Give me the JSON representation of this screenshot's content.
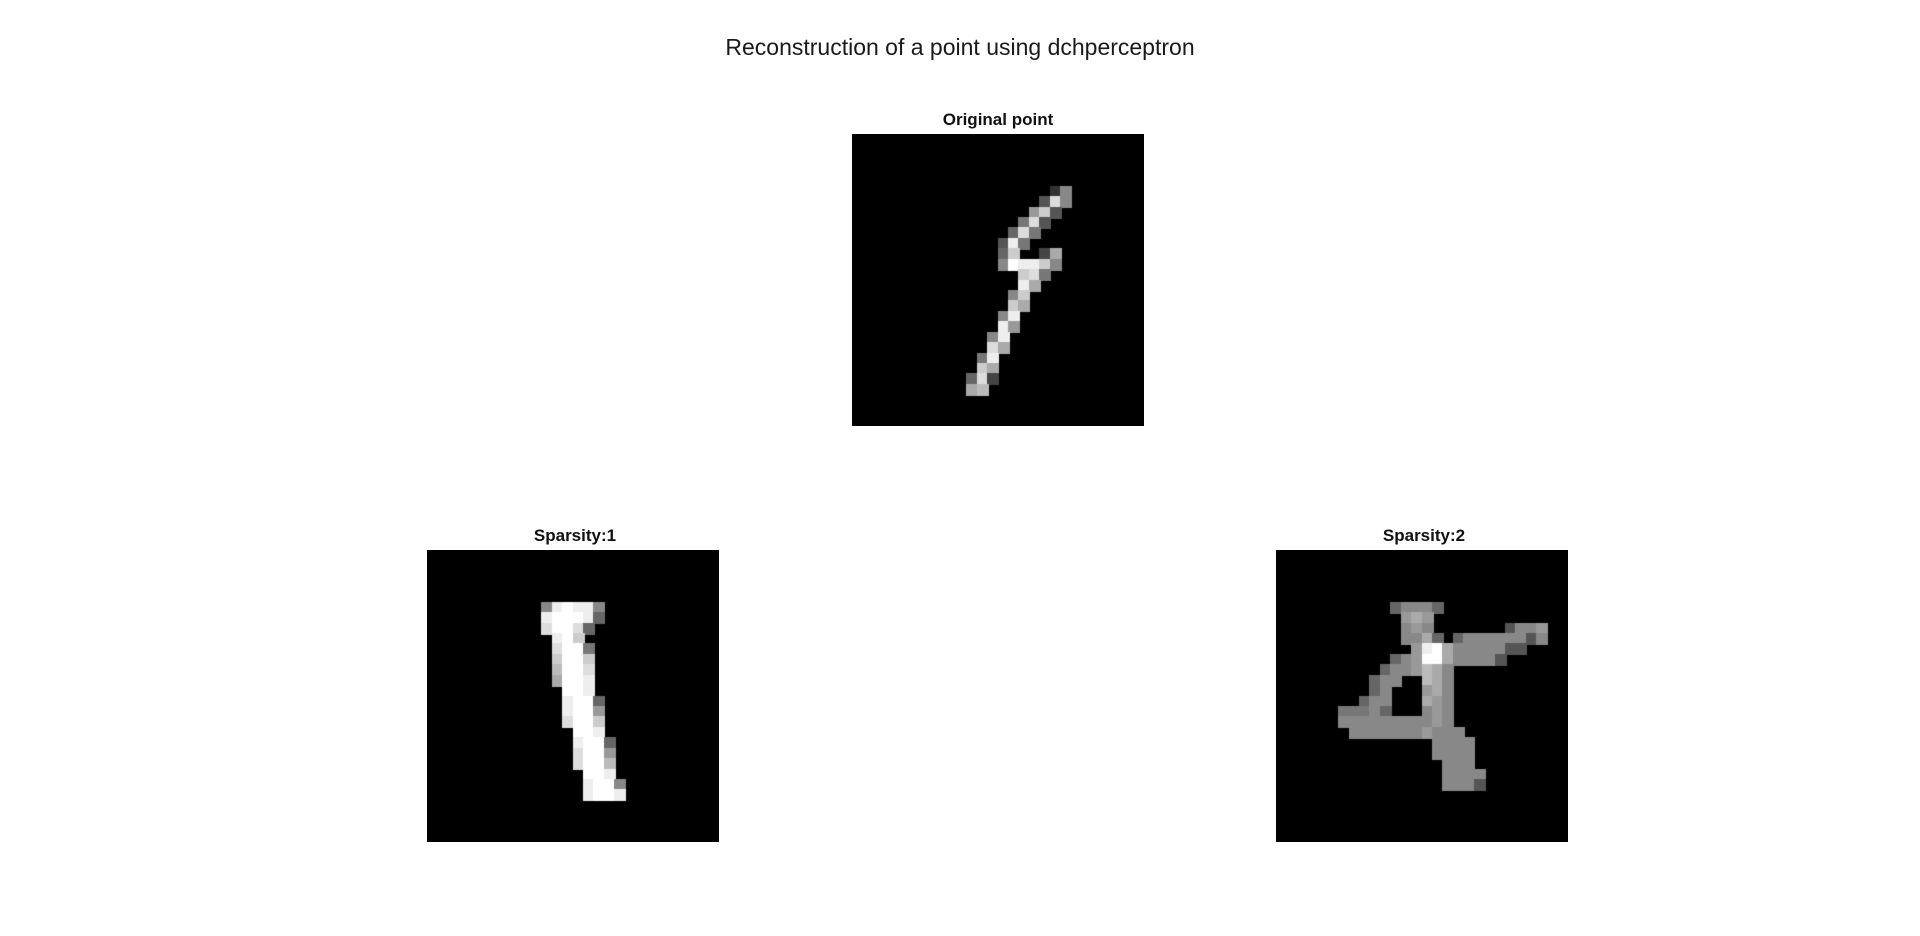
{
  "figure": {
    "title": "Reconstruction of a point using dchperceptron"
  },
  "panels": [
    {
      "title": "Original point",
      "image_rows": [
        "............................",
        "............................",
        "............................",
        "............................",
        "............................",
        "...................38.......",
        "..................5D8.......",
        ".................9C5........",
        "................7D5.........",
        "...............6D7..........",
        "..............5E7...........",
        "..............6C..4A........",
        "..............8FEEC8........",
        "................CD7.........",
        "................EA..........",
        "...............8C...........",
        "...............CA...........",
        "..............8E............",
        "..............E9............",
        ".............8E.............",
        ".............DA.............",
        "............7E..............",
        "............CA..............",
        "...........6D4..............",
        "...........AB...............",
        "............................",
        "............................",
        "............................"
      ]
    },
    {
      "title": "Sparsity:1",
      "image_rows": [
        "............................",
        "............................",
        "............................",
        "............................",
        "............................",
        "...........8EFEE8...........",
        "...........EFFFE6...........",
        "...........DFFD6............",
        "............EFC.............",
        "............DFF7............",
        "............CFFC............",
        "............BFFD............",
        "............AFFE............",
        ".............FFE............",
        ".............EFF6...........",
        ".............EFF9...........",
        ".............DFFC...........",
        "..............FFE...........",
        "..............EFF6..........",
        "..............DFF9..........",
        "..............DFFB..........",
        "...............FFE..........",
        "...............EFF8.........",
        "...............EFFE.........",
        "............................",
        "............................",
        "............................",
        "............................"
      ]
    },
    {
      "title": "Sparsity:2",
      "image_rows": [
        "............................",
        "............................",
        "............................",
        "............................",
        "............................",
        "...........68886............",
        "............9A9.............",
        "............898.......5889..",
        "............88A6.688888858..",
        ".............9EFA8888855....",
        "...........689FFA88885......",
        "..........6889BA8...........",
        ".........688..BA8...........",
        ".........68...9A8...........",
        "........688...A98...........",
        "......77786...898...........",
        "......88888888898...........",
        ".......88888889888..........",
        "...............8888.........",
        "...............8888.........",
        "................888.........",
        "................8888........",
        "................8885........",
        "................................",
        "............................",
        "............................",
        "............................",
        "............................"
      ]
    }
  ]
}
